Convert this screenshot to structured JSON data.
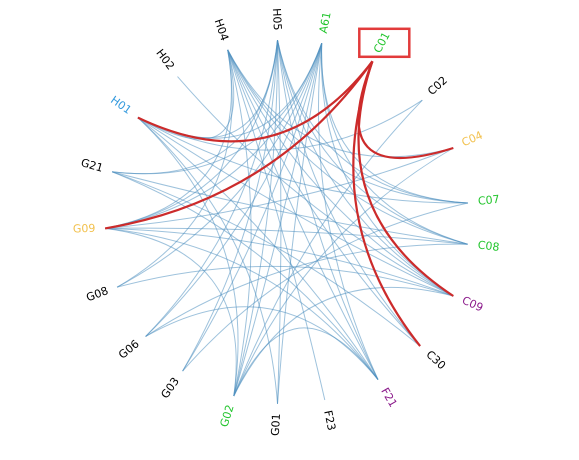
{
  "diagram": {
    "type": "chord-edge-bundle",
    "highlight_node": "C01",
    "colors": {
      "edge": "#4f8fbf",
      "highlight_edge": "#cc2b2b",
      "highlight_box": "#e23b3b"
    },
    "nodes": [
      {
        "id": "C01",
        "label": "C01",
        "color": "#22c52d"
      },
      {
        "id": "C02",
        "label": "C02",
        "color": "#000000"
      },
      {
        "id": "C04",
        "label": "C04",
        "color": "#f2c14e"
      },
      {
        "id": "C07",
        "label": "C07",
        "color": "#22c52d"
      },
      {
        "id": "C08",
        "label": "C08",
        "color": "#22c52d"
      },
      {
        "id": "C09",
        "label": "C09",
        "color": "#8b1a8b"
      },
      {
        "id": "C30",
        "label": "C30",
        "color": "#000000"
      },
      {
        "id": "F21",
        "label": "F21",
        "color": "#8b1a8b"
      },
      {
        "id": "F23",
        "label": "F23",
        "color": "#000000"
      },
      {
        "id": "G01",
        "label": "G01",
        "color": "#000000"
      },
      {
        "id": "G02",
        "label": "G02",
        "color": "#22c52d"
      },
      {
        "id": "G03",
        "label": "G03",
        "color": "#000000"
      },
      {
        "id": "G06",
        "label": "G06",
        "color": "#000000"
      },
      {
        "id": "G08",
        "label": "G08",
        "color": "#000000"
      },
      {
        "id": "G09",
        "label": "G09",
        "color": "#f2c14e"
      },
      {
        "id": "G21",
        "label": "G21",
        "color": "#000000"
      },
      {
        "id": "H01",
        "label": "H01",
        "color": "#3399dd"
      },
      {
        "id": "H02",
        "label": "H02",
        "color": "#000000"
      },
      {
        "id": "H04",
        "label": "H04",
        "color": "#000000"
      },
      {
        "id": "H05",
        "label": "H05",
        "color": "#000000"
      },
      {
        "id": "A61",
        "label": "A61",
        "color": "#22c52d"
      }
    ],
    "edges": [
      [
        "C01",
        "H01"
      ],
      [
        "C01",
        "G09"
      ],
      [
        "C01",
        "C04"
      ],
      [
        "C01",
        "C09"
      ],
      [
        "C01",
        "C30"
      ],
      [
        "C02",
        "H01"
      ],
      [
        "C02",
        "G02"
      ],
      [
        "C04",
        "H04"
      ],
      [
        "C04",
        "G09"
      ],
      [
        "C04",
        "G02"
      ],
      [
        "C07",
        "H01"
      ],
      [
        "C07",
        "G03"
      ],
      [
        "C07",
        "H05"
      ],
      [
        "C08",
        "G09"
      ],
      [
        "C08",
        "H04"
      ],
      [
        "C08",
        "G21"
      ],
      [
        "C08",
        "G06"
      ],
      [
        "C09",
        "G09"
      ],
      [
        "C09",
        "H01"
      ],
      [
        "C09",
        "H05"
      ],
      [
        "C09",
        "H04"
      ],
      [
        "C09",
        "G08"
      ],
      [
        "C09",
        "A61"
      ],
      [
        "C09",
        "G02"
      ],
      [
        "C30",
        "H05"
      ],
      [
        "C30",
        "G21"
      ],
      [
        "F21",
        "H01"
      ],
      [
        "F21",
        "G09"
      ],
      [
        "F21",
        "H05"
      ],
      [
        "F21",
        "H04"
      ],
      [
        "F21",
        "G21"
      ],
      [
        "F21",
        "A61"
      ],
      [
        "F21",
        "G02"
      ],
      [
        "F21",
        "G06"
      ],
      [
        "F23",
        "H04"
      ],
      [
        "G01",
        "H05"
      ],
      [
        "G01",
        "A61"
      ],
      [
        "G01",
        "H01"
      ],
      [
        "G02",
        "H05"
      ],
      [
        "G02",
        "H04"
      ],
      [
        "G02",
        "H01"
      ],
      [
        "G02",
        "A61"
      ],
      [
        "G02",
        "G09"
      ],
      [
        "G03",
        "A61"
      ],
      [
        "G03",
        "H05"
      ],
      [
        "G06",
        "H05"
      ],
      [
        "G06",
        "A61"
      ],
      [
        "G08",
        "H04"
      ],
      [
        "G08",
        "A61"
      ],
      [
        "G09",
        "H04"
      ],
      [
        "G09",
        "H05"
      ],
      [
        "G09",
        "A61"
      ],
      [
        "G21",
        "H05"
      ],
      [
        "G21",
        "A61"
      ],
      [
        "H01",
        "H05"
      ],
      [
        "H01",
        "A61"
      ],
      [
        "H01",
        "H04"
      ],
      [
        "H02",
        "C09"
      ],
      [
        "H04",
        "C30"
      ],
      [
        "H05",
        "C08"
      ],
      [
        "A61",
        "C07"
      ],
      [
        "A61",
        "C08"
      ],
      [
        "H04",
        "C07"
      ]
    ]
  }
}
